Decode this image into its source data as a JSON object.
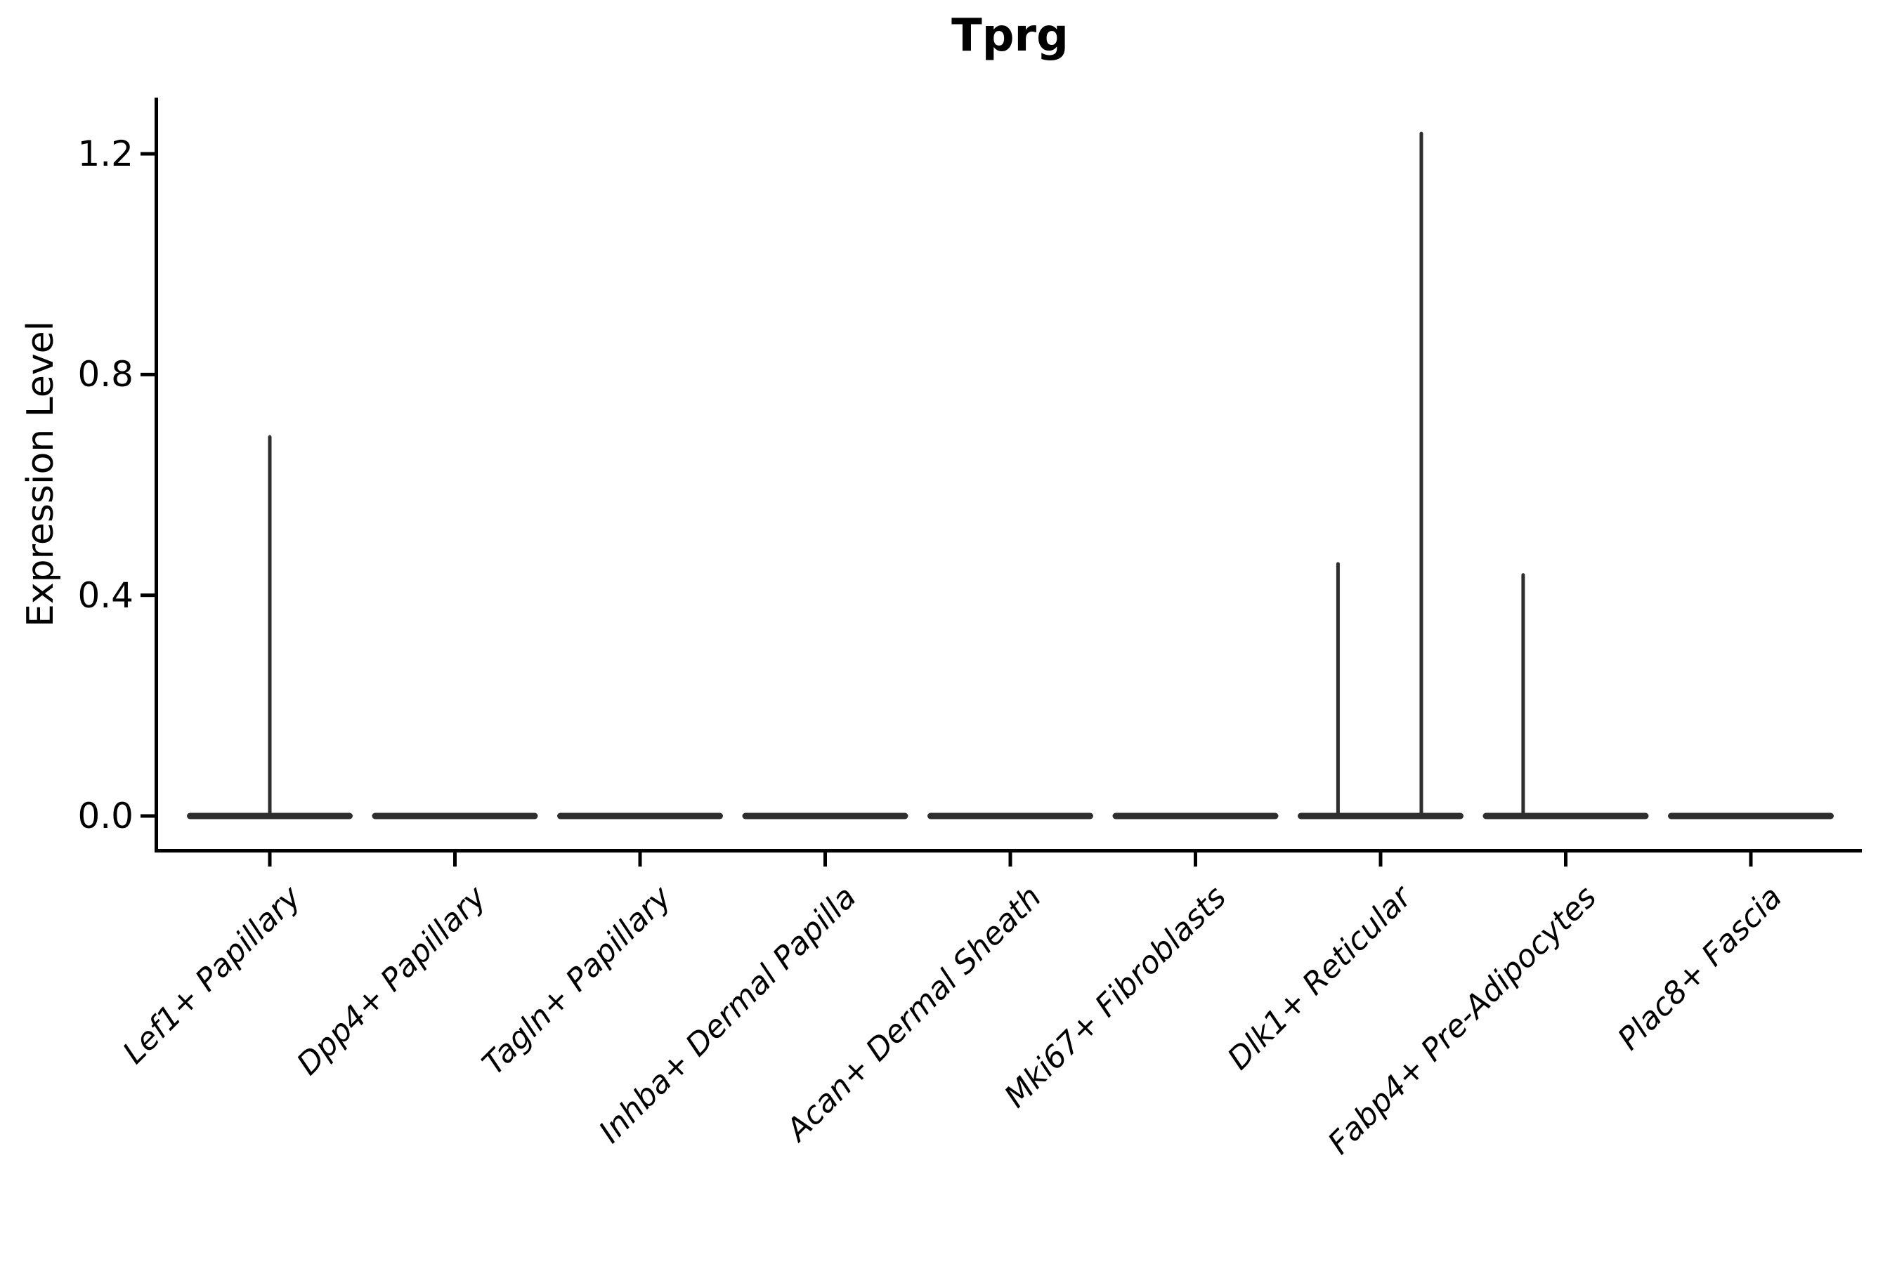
{
  "chart_data": {
    "type": "violin",
    "title": "Tprg",
    "xlabel": "",
    "ylabel": "Expression Level",
    "ylim": [
      -0.06,
      1.3
    ],
    "ytick_values": [
      0.0,
      0.4,
      0.8,
      1.2
    ],
    "ytick_labels": [
      "0.0",
      "0.4",
      "0.8",
      "1.2"
    ],
    "grid": false,
    "legend": "none",
    "categories": [
      "Lef1+ Papillary",
      "Dpp4+ Papillary",
      "Tagln+ Papillary",
      "Inhba+ Dermal Papilla",
      "Acan+ Dermal Sheath",
      "Mki67+ Fibroblasts",
      "Dlk1+ Reticular",
      "Fabp4+ Pre-Adipocytes",
      "Plac8+ Fascia"
    ],
    "violins": [
      {
        "category": "Lef1+ Papillary",
        "baseline_value": 0.0,
        "spikes": [
          {
            "offset_frac": 0.0,
            "peak_value": 0.69
          }
        ]
      },
      {
        "category": "Dpp4+ Papillary",
        "baseline_value": 0.0,
        "spikes": []
      },
      {
        "category": "Tagln+ Papillary",
        "baseline_value": 0.0,
        "spikes": []
      },
      {
        "category": "Inhba+ Dermal Papilla",
        "baseline_value": 0.0,
        "spikes": []
      },
      {
        "category": "Acan+ Dermal Sheath",
        "baseline_value": 0.0,
        "spikes": []
      },
      {
        "category": "Mki67+ Fibroblasts",
        "baseline_value": 0.0,
        "spikes": []
      },
      {
        "category": "Dlk1+ Reticular",
        "baseline_value": 0.0,
        "spikes": [
          {
            "offset_frac": -0.23,
            "peak_value": 0.46
          },
          {
            "offset_frac": 0.22,
            "peak_value": 1.24
          }
        ]
      },
      {
        "category": "Fabp4+ Pre-Adipocytes",
        "baseline_value": 0.0,
        "spikes": [
          {
            "offset_frac": -0.23,
            "peak_value": 0.44
          }
        ]
      },
      {
        "category": "Plac8+ Fascia",
        "baseline_value": 0.0,
        "spikes": []
      }
    ],
    "style": {
      "violin_color": "#2e2e2e",
      "axis_color": "#000000",
      "text_color": "#000000",
      "background": "#ffffff"
    }
  }
}
